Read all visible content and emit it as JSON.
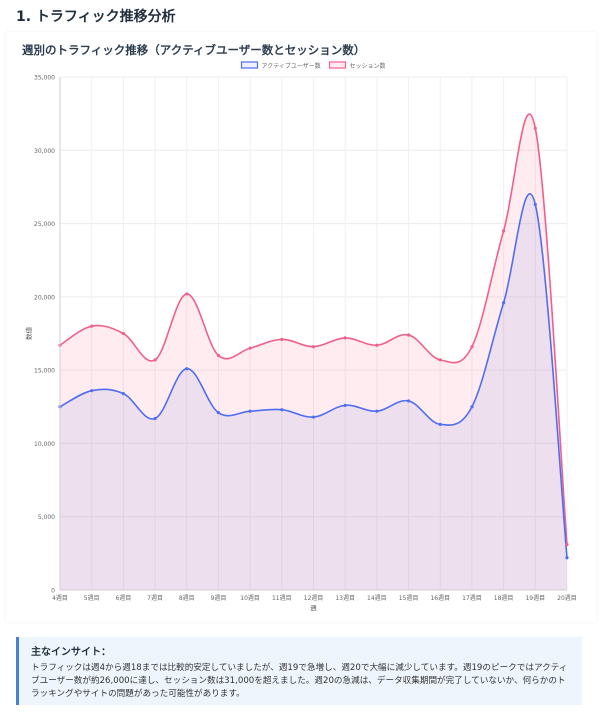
{
  "section": {
    "title": "1. トラフィック推移分析"
  },
  "chart_data": {
    "type": "area",
    "title": "週別のトラフィック推移（アクティブユーザー数とセッション数）",
    "xlabel": "週",
    "ylabel": "数値",
    "ylim": [
      0,
      35000
    ],
    "yticks": [
      0,
      5000,
      10000,
      15000,
      20000,
      25000,
      30000,
      35000
    ],
    "ytick_labels": [
      "0",
      "5,000",
      "10,000",
      "15,000",
      "20,000",
      "25,000",
      "30,000",
      "35,000"
    ],
    "grid": true,
    "legend_position": "top-center",
    "categories": [
      "4週目",
      "5週目",
      "6週目",
      "7週目",
      "8週目",
      "9週目",
      "10週目",
      "11週目",
      "12週目",
      "13週目",
      "14週目",
      "15週目",
      "16週目",
      "17週目",
      "18週目",
      "19週目",
      "20週目"
    ],
    "series": [
      {
        "name": "アクティブユーザー数",
        "color": "#4f6ef0",
        "fill": "rgba(90,105,240,0.10)",
        "values": [
          12500,
          13600,
          13400,
          11700,
          15100,
          12100,
          12200,
          12300,
          11800,
          12600,
          12200,
          12900,
          11300,
          12500,
          19600,
          26300,
          2200
        ]
      },
      {
        "name": "セッション数",
        "color": "#f0608a",
        "fill": "rgba(255,99,132,0.12)",
        "values": [
          16700,
          18000,
          17500,
          15700,
          20200,
          16000,
          16500,
          17100,
          16600,
          17200,
          16700,
          17400,
          15700,
          16600,
          24500,
          31500,
          3100
        ]
      }
    ]
  },
  "insight": {
    "title": "主なインサイト：",
    "text": "トラフィックは週4から週18までは比較的安定していましたが、週19で急増し、週20で大幅に減少しています。週19のピークではアクティブユーザー数が約26,000に達し、セッション数は31,000を超えました。週20の急減は、データ収集期間が完了していないか、何らかのトラッキングやサイトの問題があった可能性があります。"
  }
}
